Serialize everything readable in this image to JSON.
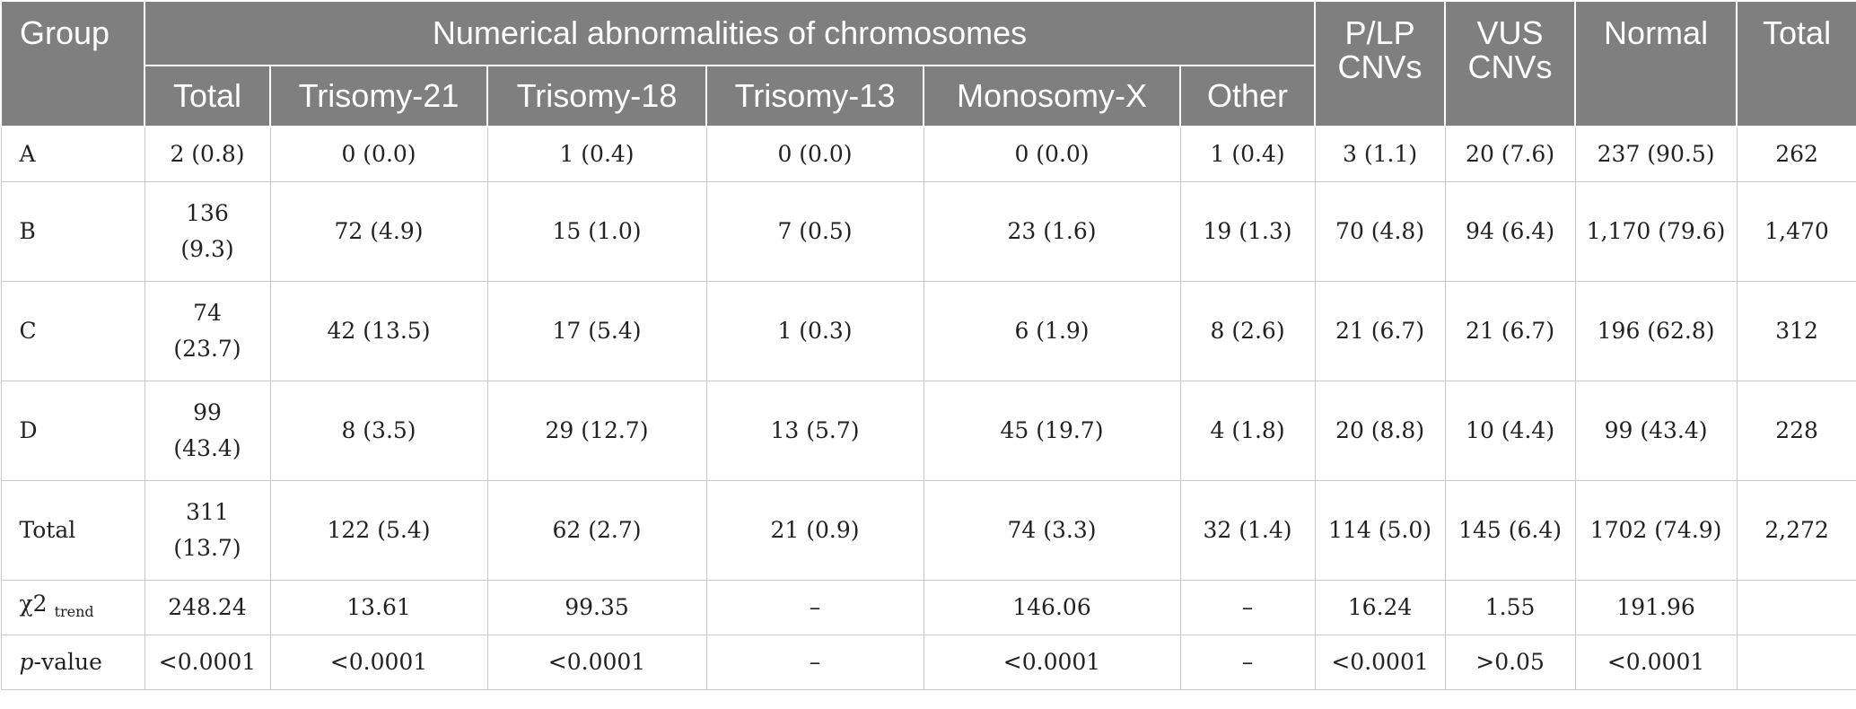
{
  "table": {
    "headers": {
      "group": "Group",
      "numerical": "Numerical abnormalities of chromosomes",
      "plp_line1": "P/LP",
      "plp_line2": "CNVs",
      "vus_line1": "VUS",
      "vus_line2": "CNVs",
      "normal": "Normal",
      "total": "Total",
      "sub": [
        "Total",
        "Trisomy-21",
        "Trisomy-18",
        "Trisomy-13",
        "Monosomy-X",
        "Other"
      ]
    },
    "rows": [
      {
        "label": "A",
        "cells": [
          [
            "2 (0.8)"
          ],
          [
            "0 (0.0)"
          ],
          [
            "1 (0.4)"
          ],
          [
            "0 (0.0)"
          ],
          [
            "0 (0.0)"
          ],
          [
            "1 (0.4)"
          ],
          [
            "3 (1.1)"
          ],
          [
            "20 (7.6)"
          ],
          [
            "237 (90.5)"
          ],
          [
            "262"
          ]
        ]
      },
      {
        "label": "B",
        "cells": [
          [
            "136",
            "(9.3)"
          ],
          [
            "72 (4.9)"
          ],
          [
            "15 (1.0)"
          ],
          [
            "7 (0.5)"
          ],
          [
            "23 (1.6)"
          ],
          [
            "19 (1.3)"
          ],
          [
            "70 (4.8)"
          ],
          [
            "94 (6.4)"
          ],
          [
            "1,170 (79.6)"
          ],
          [
            "1,470"
          ]
        ]
      },
      {
        "label": "C",
        "cells": [
          [
            "74",
            "(23.7)"
          ],
          [
            "42 (13.5)"
          ],
          [
            "17 (5.4)"
          ],
          [
            "1 (0.3)"
          ],
          [
            "6 (1.9)"
          ],
          [
            "8 (2.6)"
          ],
          [
            "21 (6.7)"
          ],
          [
            "21 (6.7)"
          ],
          [
            "196 (62.8)"
          ],
          [
            "312"
          ]
        ]
      },
      {
        "label": "D",
        "cells": [
          [
            "99",
            "(43.4)"
          ],
          [
            "8 (3.5)"
          ],
          [
            "29 (12.7)"
          ],
          [
            "13 (5.7)"
          ],
          [
            "45 (19.7)"
          ],
          [
            "4 (1.8)"
          ],
          [
            "20 (8.8)"
          ],
          [
            "10 (4.4)"
          ],
          [
            "99 (43.4)"
          ],
          [
            "228"
          ]
        ]
      },
      {
        "label": "Total",
        "cells": [
          [
            "311",
            "(13.7)"
          ],
          [
            "122 (5.4)"
          ],
          [
            "62 (2.7)"
          ],
          [
            "21 (0.9)"
          ],
          [
            "74 (3.3)"
          ],
          [
            "32 (1.4)"
          ],
          [
            "114 (5.0)"
          ],
          [
            "145 (6.4)"
          ],
          [
            "1702 (74.9)"
          ],
          [
            "2,272"
          ]
        ]
      }
    ],
    "chi_row": {
      "label": "χ2",
      "label_sub": "trend",
      "cells": [
        "248.24",
        "13.61",
        "99.35",
        "–",
        "146.06",
        "–",
        "16.24",
        "1.55",
        "191.96",
        ""
      ]
    },
    "p_row": {
      "label_italic": "p",
      "label_rest": "-value",
      "cells": [
        "<0.0001",
        "<0.0001",
        "<0.0001",
        "–",
        "<0.0001",
        "–",
        "<0.0001",
        ">0.05",
        "<0.0001",
        ""
      ]
    }
  }
}
